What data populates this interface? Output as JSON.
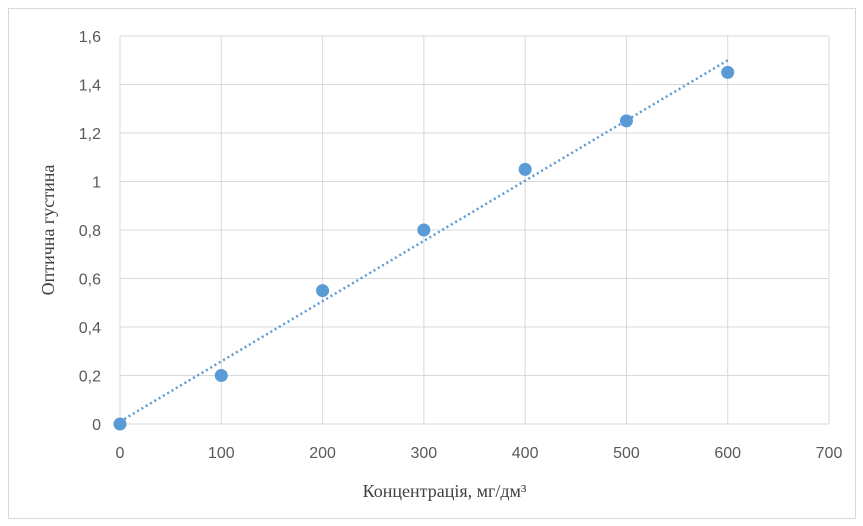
{
  "chart_data": {
    "type": "scatter",
    "title": "",
    "xlabel": "Концентрація, мг/дм³",
    "ylabel": "Оптична густина",
    "xlim": [
      0,
      700
    ],
    "ylim": [
      0,
      1.6
    ],
    "x_ticks": [
      "0",
      "100",
      "200",
      "300",
      "400",
      "500",
      "600",
      "700"
    ],
    "y_ticks": [
      "0",
      "0,2",
      "0,4",
      "0,6",
      "0,8",
      "1",
      "1,2",
      "1,4",
      "1,6"
    ],
    "grid": true,
    "legend": "none",
    "series": [
      {
        "x": [
          0,
          100,
          200,
          300,
          400,
          500,
          600
        ],
        "y": [
          0,
          0.2,
          0.55,
          0.8,
          1.05,
          1.25,
          1.45
        ],
        "marker_color": "#5b9bd5"
      }
    ],
    "trendline": {
      "type": "linear",
      "style": "dotted",
      "color": "#5b9bd5",
      "x": [
        0,
        600
      ],
      "y": [
        0.01,
        1.5
      ]
    },
    "colors": {
      "grid": "#d9d9d9",
      "tick_text": "#595959",
      "axis_title_text": "#404040"
    }
  }
}
